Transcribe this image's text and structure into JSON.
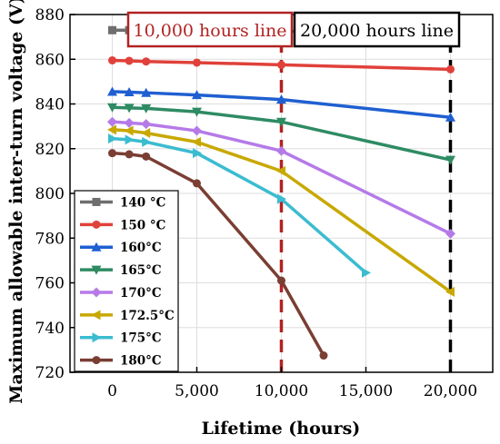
{
  "chart_data": {
    "type": "line",
    "title": "",
    "xlabel": "Lifetime (hours)",
    "ylabel": "Maximum allowable inter-turn voltage (V)",
    "xlim": [
      -2500,
      22500
    ],
    "ylim": [
      720,
      880
    ],
    "xticks": [
      0,
      5000,
      10000,
      15000,
      20000
    ],
    "xtick_labels": [
      "0",
      "5,000",
      "10,000",
      "15,000",
      "20,000"
    ],
    "yticks": [
      720,
      740,
      760,
      780,
      800,
      820,
      840,
      860,
      880
    ],
    "ytick_labels": [
      "720",
      "740",
      "760",
      "780",
      "800",
      "820",
      "840",
      "860",
      "880"
    ],
    "grid": true,
    "legend": "left",
    "annotations": [
      {
        "text": "10,000 hours line",
        "x": 10000,
        "color": "#b22222"
      },
      {
        "text": "20,000 hours line",
        "x": 20000,
        "color": "#000000"
      }
    ],
    "series": [
      {
        "name": "140 °C",
        "color": "#6e6e6e",
        "marker": "square",
        "x": [
          0,
          1000,
          2000,
          5000,
          10000,
          20000
        ],
        "y": [
          873,
          873,
          873,
          873,
          872.5,
          872
        ]
      },
      {
        "name": "150 °C",
        "color": "#e0413a",
        "marker": "circle",
        "x": [
          0,
          1000,
          2000,
          5000,
          10000,
          20000
        ],
        "y": [
          859.5,
          859.3,
          859,
          858.5,
          857.5,
          855.5
        ]
      },
      {
        "name": "160°C",
        "color": "#1f5fd1",
        "marker": "triangle-up",
        "x": [
          0,
          1000,
          2000,
          5000,
          10000,
          20000
        ],
        "y": [
          845.5,
          845.3,
          845,
          844,
          842,
          834
        ]
      },
      {
        "name": "165°C",
        "color": "#2e8b63",
        "marker": "triangle-down",
        "x": [
          0,
          1000,
          2000,
          5000,
          10000,
          20000
        ],
        "y": [
          838.5,
          838.2,
          838,
          836.5,
          832,
          815
        ]
      },
      {
        "name": "170°C",
        "color": "#b57ae8",
        "marker": "diamond",
        "x": [
          0,
          1000,
          2000,
          5000,
          10000,
          20000
        ],
        "y": [
          832,
          831.5,
          831,
          828,
          819,
          782
        ]
      },
      {
        "name": "172.5°C",
        "color": "#c8a800",
        "marker": "triangle-left",
        "x": [
          0,
          1000,
          2000,
          5000,
          10000,
          20000
        ],
        "y": [
          828.5,
          828,
          827,
          823,
          810,
          756
        ]
      },
      {
        "name": "175°C",
        "color": "#3bbcd0",
        "marker": "triangle-right",
        "x": [
          0,
          1000,
          2000,
          5000,
          10000,
          15000
        ],
        "y": [
          824.5,
          824,
          823,
          818,
          797.5,
          764.5
        ]
      },
      {
        "name": "180°C",
        "color": "#7a3e33",
        "marker": "circle",
        "x": [
          0,
          1000,
          2000,
          5000,
          10000,
          12500
        ],
        "y": [
          818,
          817.5,
          816.5,
          804.5,
          761,
          727.5
        ]
      }
    ]
  }
}
